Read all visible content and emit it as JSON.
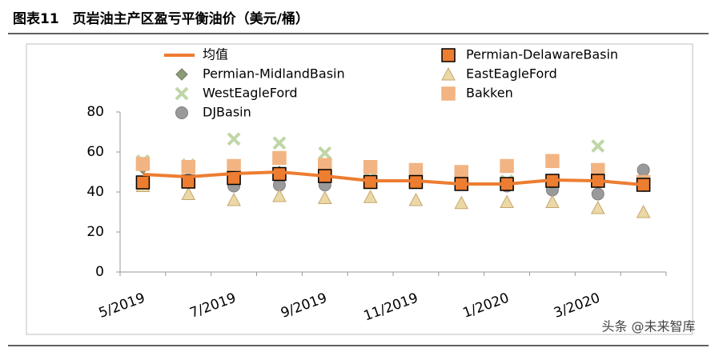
{
  "header": {
    "title": "图表11　页岩油主产区盈亏平衡油价（美元/桶）"
  },
  "watermark": "头条 @未来智库",
  "chart_data": {
    "type": "line",
    "categories": [
      "5/2019",
      null,
      "7/2019",
      null,
      "9/2019",
      null,
      "11/2019",
      null,
      "1/2020",
      null,
      "3/2020",
      null
    ],
    "ylim": [
      0,
      80
    ],
    "yticks": [
      0,
      20,
      40,
      60,
      80
    ],
    "series": [
      {
        "name": "均值",
        "marker": "line",
        "color": "#ED7D31",
        "values": [
          48.8,
          47.6,
          49.2,
          50,
          48,
          45.6,
          45.6,
          44,
          44,
          46,
          45.6,
          43.6
        ]
      },
      {
        "name": "Permian-DelawareBasin",
        "marker": "square",
        "color": "#ED7D31",
        "values": [
          44.8,
          45.2,
          47,
          49,
          48,
          45,
          45,
          44,
          44,
          45.6,
          45.6,
          43.6
        ]
      },
      {
        "name": "Permian-MidlandBasin",
        "marker": "diamond",
        "color": "#8E9B78",
        "values": [
          52,
          45,
          49,
          50,
          49,
          45,
          45,
          44,
          44,
          45,
          45,
          43
        ]
      },
      {
        "name": "EastEagleFord",
        "marker": "triangle",
        "color": "#EAD9A6",
        "values": [
          43,
          39,
          36,
          38,
          37,
          37.5,
          36,
          34.5,
          35,
          35,
          32,
          30
        ]
      },
      {
        "name": "WestEagleFord",
        "marker": "cross",
        "color": "#BFD6A6",
        "values": [
          55.5,
          53.5,
          66.5,
          64.5,
          59.5,
          47,
          47,
          44,
          45.5,
          45,
          63,
          44
        ]
      },
      {
        "name": "Bakken",
        "marker": "square",
        "color": "#F2B482",
        "values": [
          54,
          52.5,
          53,
          57,
          53.5,
          52.5,
          51,
          50,
          53,
          55.5,
          51,
          45
        ]
      },
      {
        "name": "DJBasin",
        "marker": "circle",
        "color": "#9A9A9A",
        "values": [
          43.5,
          46,
          43,
          43.5,
          43.5,
          45,
          49,
          47.5,
          43,
          41,
          39,
          51
        ]
      }
    ]
  }
}
